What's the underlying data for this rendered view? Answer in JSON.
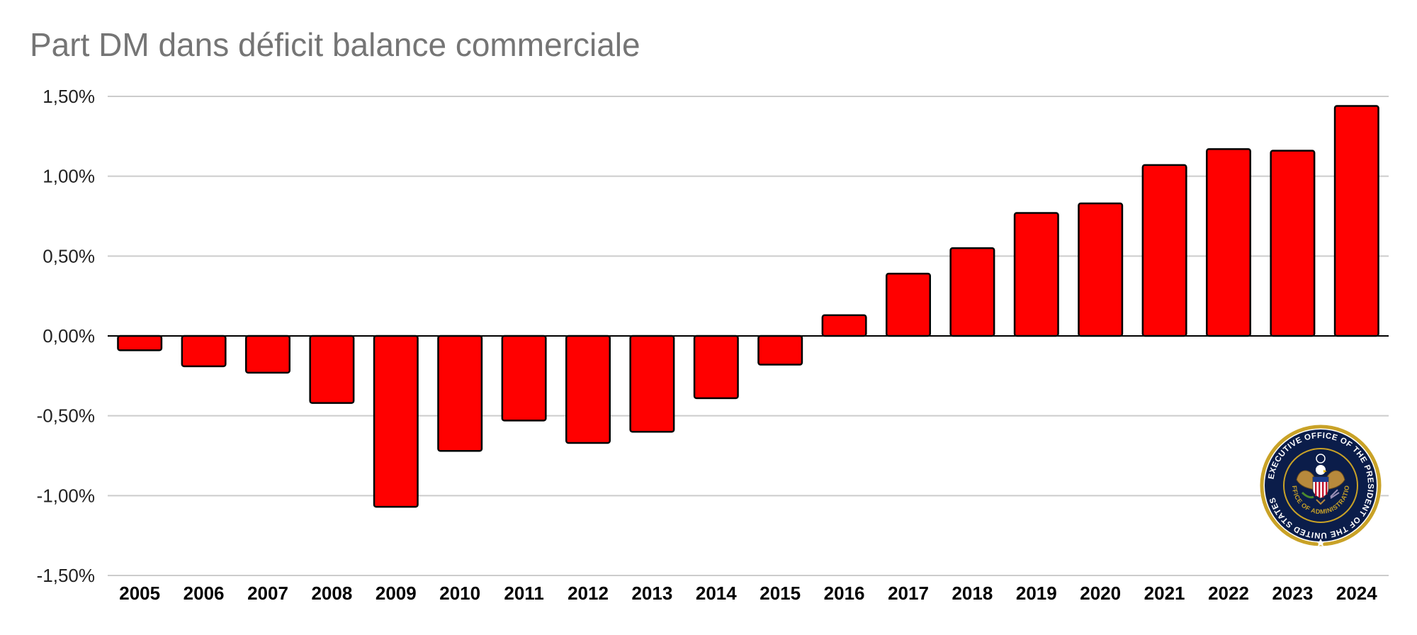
{
  "chart_data": {
    "type": "bar",
    "title": "Part DM dans déficit balance commerciale",
    "xlabel": "",
    "ylabel": "",
    "categories": [
      "2005",
      "2006",
      "2007",
      "2008",
      "2009",
      "2010",
      "2011",
      "2012",
      "2013",
      "2014",
      "2015",
      "2016",
      "2017",
      "2018",
      "2019",
      "2020",
      "2021",
      "2022",
      "2023",
      "2024"
    ],
    "values": [
      -0.09,
      -0.19,
      -0.23,
      -0.42,
      -1.07,
      -0.72,
      -0.53,
      -0.67,
      -0.6,
      -0.39,
      -0.18,
      0.13,
      0.39,
      0.55,
      0.77,
      0.83,
      1.07,
      1.17,
      1.16,
      1.44
    ],
    "ylim": [
      -1.5,
      1.5
    ],
    "yticks": [
      1.5,
      1.0,
      0.5,
      0.0,
      -0.5,
      -1.0,
      -1.5
    ],
    "ytick_labels": [
      "1,50%",
      "1,00%",
      "0,50%",
      "0,00%",
      "-0,50%",
      "-1,00%",
      "-1,50%"
    ],
    "grid": true,
    "legend": "none",
    "bar_color": "#ff0000",
    "bar_stroke": "#000000",
    "title_color": "#757575",
    "gridline_color": "#cccccc"
  },
  "seal": {
    "top_text": "EXECUTIVE OFFICE OF THE PRESIDENT OF THE UNITED STATES",
    "inner_text": "OFFICE OF ADMINISTRATION",
    "ring_color": "#0b1d4a",
    "rim_color": "#c9a227"
  }
}
